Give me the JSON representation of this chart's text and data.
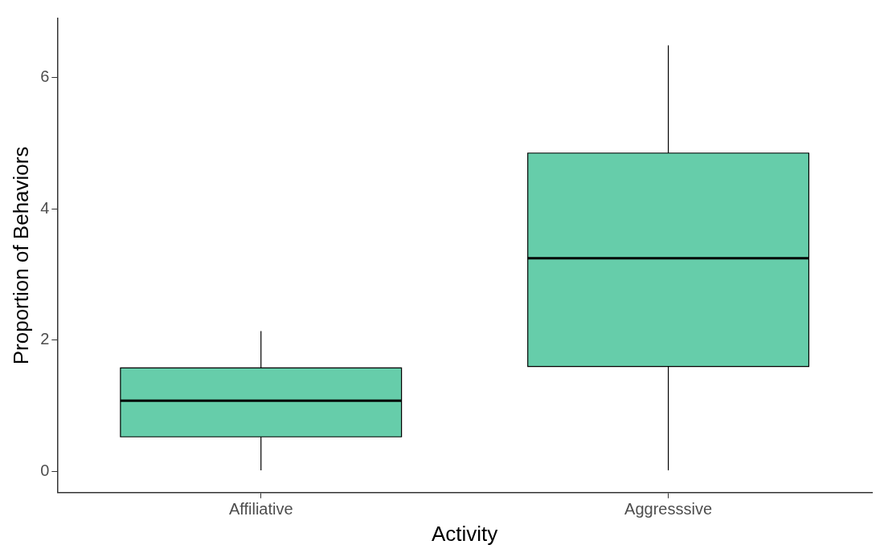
{
  "chart_data": {
    "type": "box",
    "xlabel": "Activity",
    "ylabel": "Proportion of Behaviors",
    "categories": [
      "Affiliative",
      "Aggresssive"
    ],
    "color": "#66cdaa",
    "boxes": [
      {
        "low": 0.02,
        "q1": 0.53,
        "median": 1.08,
        "q3": 1.58,
        "high": 2.14
      },
      {
        "low": 0.02,
        "q1": 1.6,
        "median": 3.25,
        "q3": 4.85,
        "high": 6.49
      }
    ],
    "ylim": [
      -0.32,
      6.9
    ],
    "yticks": [
      0,
      2,
      4,
      6
    ],
    "grid": false
  }
}
